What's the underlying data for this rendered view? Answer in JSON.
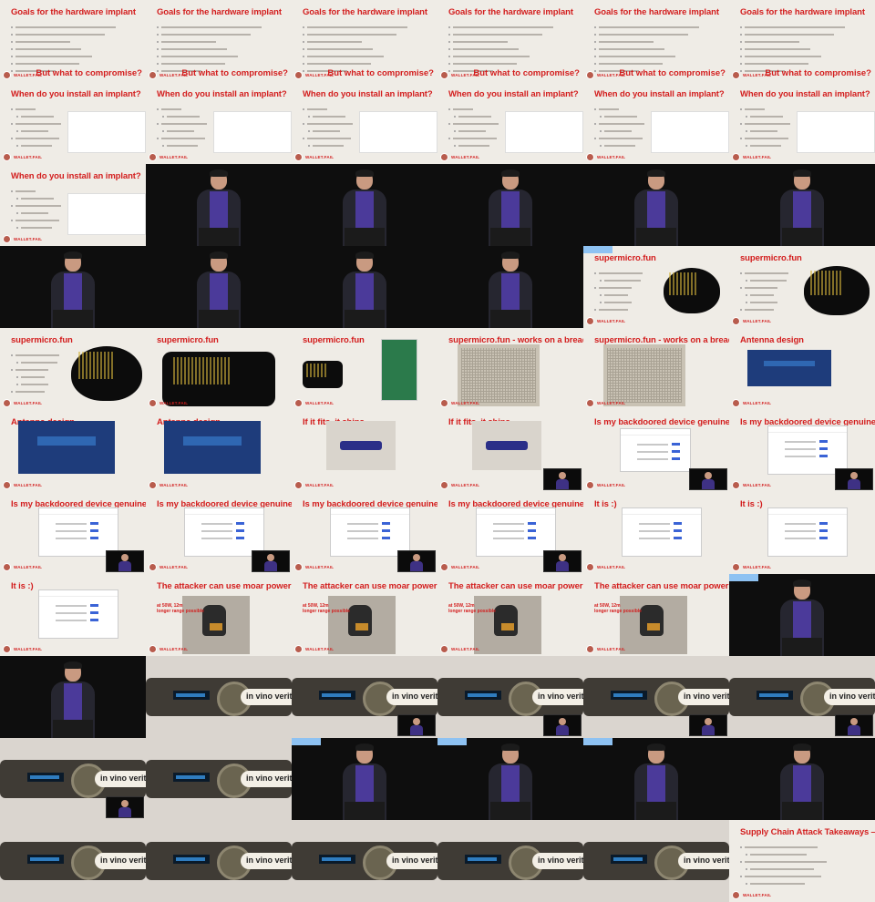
{
  "footer_text": "WALLET.FAIL",
  "device_label": "in vino veritas",
  "photo_caption": [
    "at 50W, 12m",
    "longer range possible"
  ],
  "grid": [
    [
      "goals",
      "goals",
      "goals",
      "goals",
      "goals",
      "goals"
    ],
    [
      "implant",
      "implant",
      "implant",
      "implant",
      "implant",
      "implant"
    ],
    [
      "implant",
      "speaker",
      "speaker",
      "speaker",
      "speaker",
      "speaker"
    ],
    [
      "speaker",
      "speaker",
      "speaker",
      "speaker",
      "supermicro_a",
      "supermicro_b"
    ],
    [
      "supermicro_c",
      "supermicro_pcb",
      "supermicro_pcb2",
      "breadboard",
      "breadboard",
      "antenna_first"
    ],
    [
      "antenna",
      "antenna",
      "ships",
      "ships_pip",
      "genuine_pip_first",
      "genuine_pip"
    ],
    [
      "genuine_pip",
      "genuine_pip",
      "genuine_pip",
      "genuine_pip",
      "itis",
      "itis"
    ],
    [
      "itis",
      "attacker",
      "attacker",
      "attacker",
      "attacker",
      "speaker_tag"
    ],
    [
      "speaker",
      "device",
      "device_pip",
      "device_pip",
      "device_pip",
      "device_pip"
    ],
    [
      "device_pip",
      "device",
      "speaker_tag",
      "speaker_tag",
      "speaker_tag",
      "speaker"
    ],
    [
      "device",
      "device",
      "device",
      "device",
      "device",
      "recap"
    ]
  ],
  "titles": {
    "goals": "Goals for the hardware implant",
    "goals_sub": "But what to compromise?",
    "implant": "When do you install an implant?",
    "supermicro": "supermicro.fun",
    "breadboard": "supermicro.fun - works on a breadboard",
    "antenna": "Antenna design",
    "ships": "If it fits, it ships",
    "genuine": "Is my backdoored device genuine?",
    "itis": "It is :)",
    "attacker": "The attacker can use moar power",
    "recap": "Supply Chain Attack Takeaways — Recap"
  }
}
